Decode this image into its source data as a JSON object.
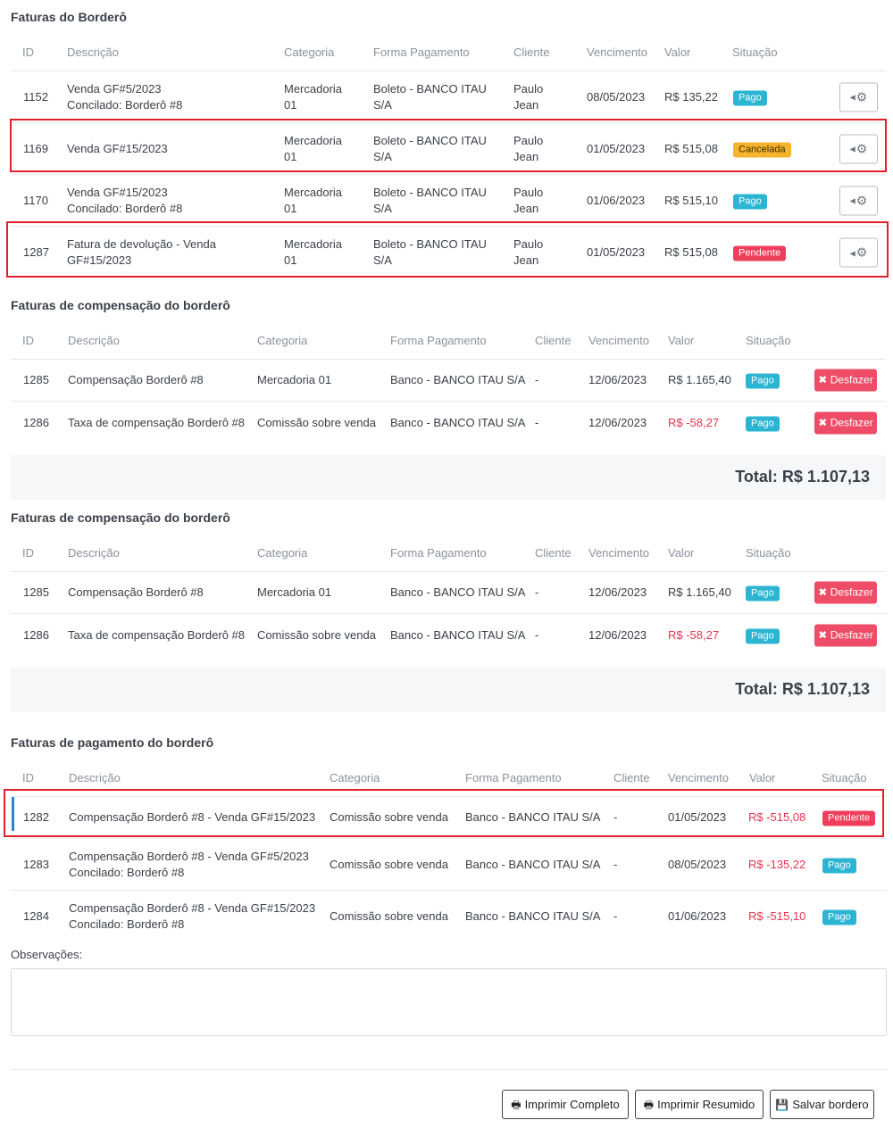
{
  "section1": {
    "title": "Faturas do Borderô",
    "headers": [
      "ID",
      "Descrição",
      "Categoria",
      "Forma Pagamento",
      "Cliente",
      "Vencimento",
      "Valor",
      "Situação"
    ],
    "rows": [
      {
        "id": "1152",
        "desc1": "Venda GF#5/2023",
        "desc2": "Concilado: Borderô #8",
        "cat1": "Mercadoria",
        "cat2": "01",
        "pay1": "Boleto - BANCO ITAU",
        "pay2": "S/A",
        "cli1": "Paulo",
        "cli2": "Jean",
        "venc": "08/05/2023",
        "valor": "R$ 135,22",
        "status": "Pago"
      },
      {
        "id": "1169",
        "desc1": "Venda GF#15/2023",
        "desc2": "",
        "cat1": "Mercadoria",
        "cat2": "01",
        "pay1": "Boleto - BANCO ITAU",
        "pay2": "S/A",
        "cli1": "Paulo",
        "cli2": "Jean",
        "venc": "01/05/2023",
        "valor": "R$ 515,08",
        "status": "Cancelada"
      },
      {
        "id": "1170",
        "desc1": "Venda GF#15/2023",
        "desc2": "Concilado: Borderô #8",
        "cat1": "Mercadoria",
        "cat2": "01",
        "pay1": "Boleto - BANCO ITAU",
        "pay2": "S/A",
        "cli1": "Paulo",
        "cli2": "Jean",
        "venc": "01/06/2023",
        "valor": "R$ 515,10",
        "status": "Pago"
      },
      {
        "id": "1287",
        "desc1": "Fatura de devolução - Venda",
        "desc2": "GF#15/2023",
        "cat1": "Mercadoria",
        "cat2": "01",
        "pay1": "Boleto - BANCO ITAU",
        "pay2": "S/A",
        "cli1": "Paulo",
        "cli2": "Jean",
        "venc": "01/05/2023",
        "valor": "R$ 515,08",
        "status": "Pendente"
      }
    ]
  },
  "section2": {
    "title": "Faturas de compensação do borderô",
    "headers": [
      "ID",
      "Descrição",
      "Categoria",
      "Forma Pagamento",
      "Cliente",
      "Vencimento",
      "Valor",
      "Situação"
    ],
    "rows": [
      {
        "id": "1285",
        "desc": "Compensação Borderô #8",
        "cat": "Mercadoria 01",
        "pay": "Banco - BANCO ITAU S/A",
        "cli": "-",
        "venc": "12/06/2023",
        "valor": "R$ 1.165,40",
        "status": "Pago",
        "action": "Desfazer"
      },
      {
        "id": "1286",
        "desc": "Taxa de compensação Borderô #8",
        "cat": "Comissão sobre venda",
        "pay": "Banco - BANCO ITAU S/A",
        "cli": "-",
        "venc": "12/06/2023",
        "valor": "R$ -58,27",
        "status": "Pago",
        "action": "Desfazer"
      }
    ],
    "total": "Total: R$ 1.107,13"
  },
  "section3": {
    "title": "Faturas de compensação do borderô",
    "headers": [
      "ID",
      "Descrição",
      "Categoria",
      "Forma Pagamento",
      "Cliente",
      "Vencimento",
      "Valor",
      "Situação"
    ],
    "rows": [
      {
        "id": "1285",
        "desc": "Compensação Borderô #8",
        "cat": "Mercadoria 01",
        "pay": "Banco - BANCO ITAU S/A",
        "cli": "-",
        "venc": "12/06/2023",
        "valor": "R$ 1.165,40",
        "status": "Pago",
        "action": "Desfazer"
      },
      {
        "id": "1286",
        "desc": "Taxa de compensação Borderô #8",
        "cat": "Comissão sobre venda",
        "pay": "Banco - BANCO ITAU S/A",
        "cli": "-",
        "venc": "12/06/2023",
        "valor": "R$ -58,27",
        "status": "Pago",
        "action": "Desfazer"
      }
    ],
    "total": "Total: R$ 1.107,13"
  },
  "section4": {
    "title": "Faturas de pagamento do borderô",
    "headers": [
      "ID",
      "Descrição",
      "Categoria",
      "Forma Pagamento",
      "Cliente",
      "Vencimento",
      "Valor",
      "Situação"
    ],
    "rows": [
      {
        "id": "1282",
        "desc1": "Compensação Borderô #8 - Venda GF#15/2023",
        "desc2": "",
        "cat": "Comissão sobre venda",
        "pay": "Banco - BANCO ITAU S/A",
        "cli": "-",
        "venc": "01/05/2023",
        "valor": "R$ -515,08",
        "status": "Pendente"
      },
      {
        "id": "1283",
        "desc1": "Compensação Borderô #8 - Venda GF#5/2023",
        "desc2": "Concilado: Borderô #8",
        "cat": "Comissão sobre venda",
        "pay": "Banco - BANCO ITAU S/A",
        "cli": "-",
        "venc": "08/05/2023",
        "valor": "R$ -135,22",
        "status": "Pago"
      },
      {
        "id": "1284",
        "desc1": "Compensação Borderô #8 - Venda GF#15/2023",
        "desc2": "Concilado: Borderô #8",
        "cat": "Comissão sobre venda",
        "pay": "Banco - BANCO ITAU S/A",
        "cli": "-",
        "venc": "01/06/2023",
        "valor": "R$ -515,10",
        "status": "Pago"
      }
    ]
  },
  "observacoes": {
    "label": "Observações:",
    "value": ""
  },
  "actions": {
    "print_full": "Imprimir Completo",
    "print_summary": "Imprimir Resumido",
    "save": "Salvar bordero"
  },
  "icons": {
    "gear": "gear-icon",
    "undo": "times-icon",
    "print": "printer-icon",
    "save": "floppy-icon"
  },
  "colors": {
    "pago": "#2cb5d3",
    "cancelada": "#f7b32b",
    "pendente": "#ef3e5c",
    "desfazer": "#ef4d67",
    "negative": "#e8334e",
    "highlight": "#e0212b",
    "accent": "#2a87c8"
  }
}
